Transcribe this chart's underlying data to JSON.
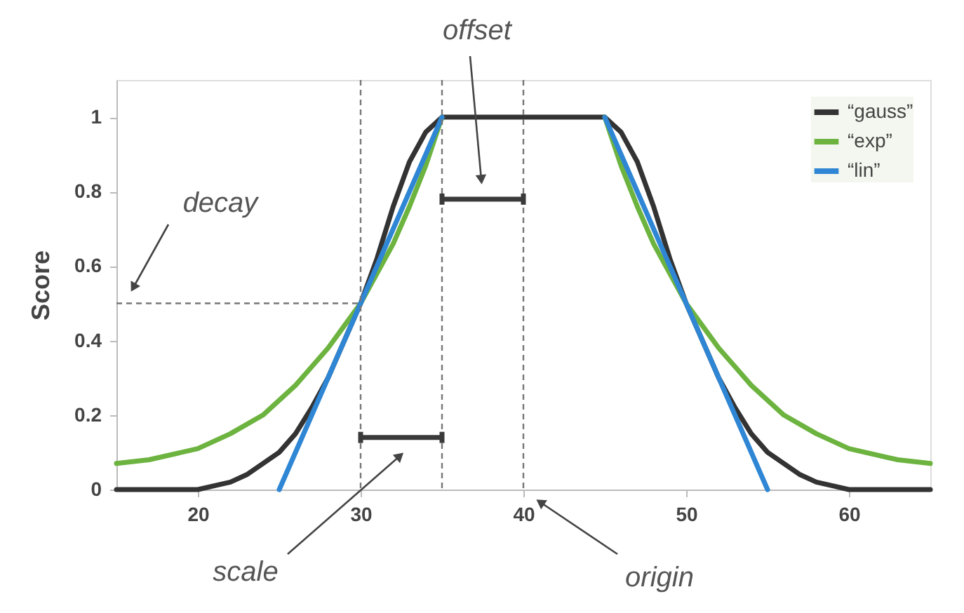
{
  "chart_data": {
    "type": "line",
    "ylabel": "Score",
    "xlim": [
      15,
      65
    ],
    "xticks": [
      20,
      30,
      40,
      50,
      60
    ],
    "ylim": [
      0,
      1.1
    ],
    "yticks": [
      0,
      0.2,
      0.4,
      0.6,
      0.8,
      1
    ],
    "grid": false,
    "legend": "top right",
    "marker": "none",
    "line_style": "solid",
    "series": [
      {
        "name": "“gauss”",
        "color": "#333333",
        "x": [
          15,
          20,
          21,
          22,
          23,
          24,
          25,
          26,
          27,
          28,
          29,
          30,
          31,
          32,
          33,
          34,
          35,
          45,
          46,
          47,
          48,
          49,
          50,
          51,
          52,
          53,
          54,
          55,
          56,
          57,
          58,
          59,
          60,
          65
        ],
        "values": [
          0,
          0,
          0.01,
          0.02,
          0.04,
          0.07,
          0.1,
          0.15,
          0.22,
          0.3,
          0.4,
          0.5,
          0.62,
          0.76,
          0.88,
          0.96,
          1,
          1,
          0.96,
          0.88,
          0.76,
          0.62,
          0.5,
          0.4,
          0.3,
          0.22,
          0.15,
          0.1,
          0.07,
          0.04,
          0.02,
          0.01,
          0,
          0
        ]
      },
      {
        "name": "“exp”",
        "color": "#6cb33f",
        "x": [
          15,
          17,
          20,
          22,
          24,
          25,
          26,
          27,
          28,
          29,
          30,
          31,
          32,
          33,
          34,
          35,
          40,
          45,
          46,
          47,
          48,
          49,
          50,
          51,
          52,
          53,
          54,
          55,
          56,
          58,
          60,
          63,
          65
        ],
        "values": [
          0.07,
          0.08,
          0.11,
          0.15,
          0.2,
          0.24,
          0.28,
          0.33,
          0.38,
          0.44,
          0.5,
          0.58,
          0.66,
          0.76,
          0.87,
          1,
          null,
          1,
          0.87,
          0.76,
          0.66,
          0.58,
          0.5,
          0.44,
          0.38,
          0.33,
          0.28,
          0.24,
          0.2,
          0.15,
          0.11,
          0.08,
          0.07
        ]
      },
      {
        "name": "“lin”",
        "color": "#2e86d4",
        "x": [
          25,
          35,
          40,
          45,
          55
        ],
        "values": [
          0,
          1,
          null,
          1,
          0
        ]
      },
      {
        "color": "#3a3a3a",
        "x": [
          30,
          35
        ],
        "values": [
          0.14,
          0.14
        ],
        "errors": [
          0.015,
          0.015
        ]
      },
      {
        "color": "#3a3a3a",
        "x": [
          35,
          40
        ],
        "values": [
          0.78,
          0.78
        ],
        "errors": [
          0.015,
          0.015
        ]
      }
    ],
    "ref_lines": [
      {
        "axis": "y",
        "value": 0.5,
        "line_style": "dashed",
        "color": "#777777"
      },
      {
        "axis": "x",
        "value": 30,
        "line_style": "dashed",
        "color": "#777777"
      },
      {
        "axis": "x",
        "value": 35,
        "line_style": "dashed",
        "color": "#777777"
      },
      {
        "axis": "x",
        "value": 40,
        "line_style": "dashed",
        "color": "#777777"
      }
    ],
    "annotations": [
      "decay",
      "offset",
      "scale",
      "origin"
    ]
  }
}
